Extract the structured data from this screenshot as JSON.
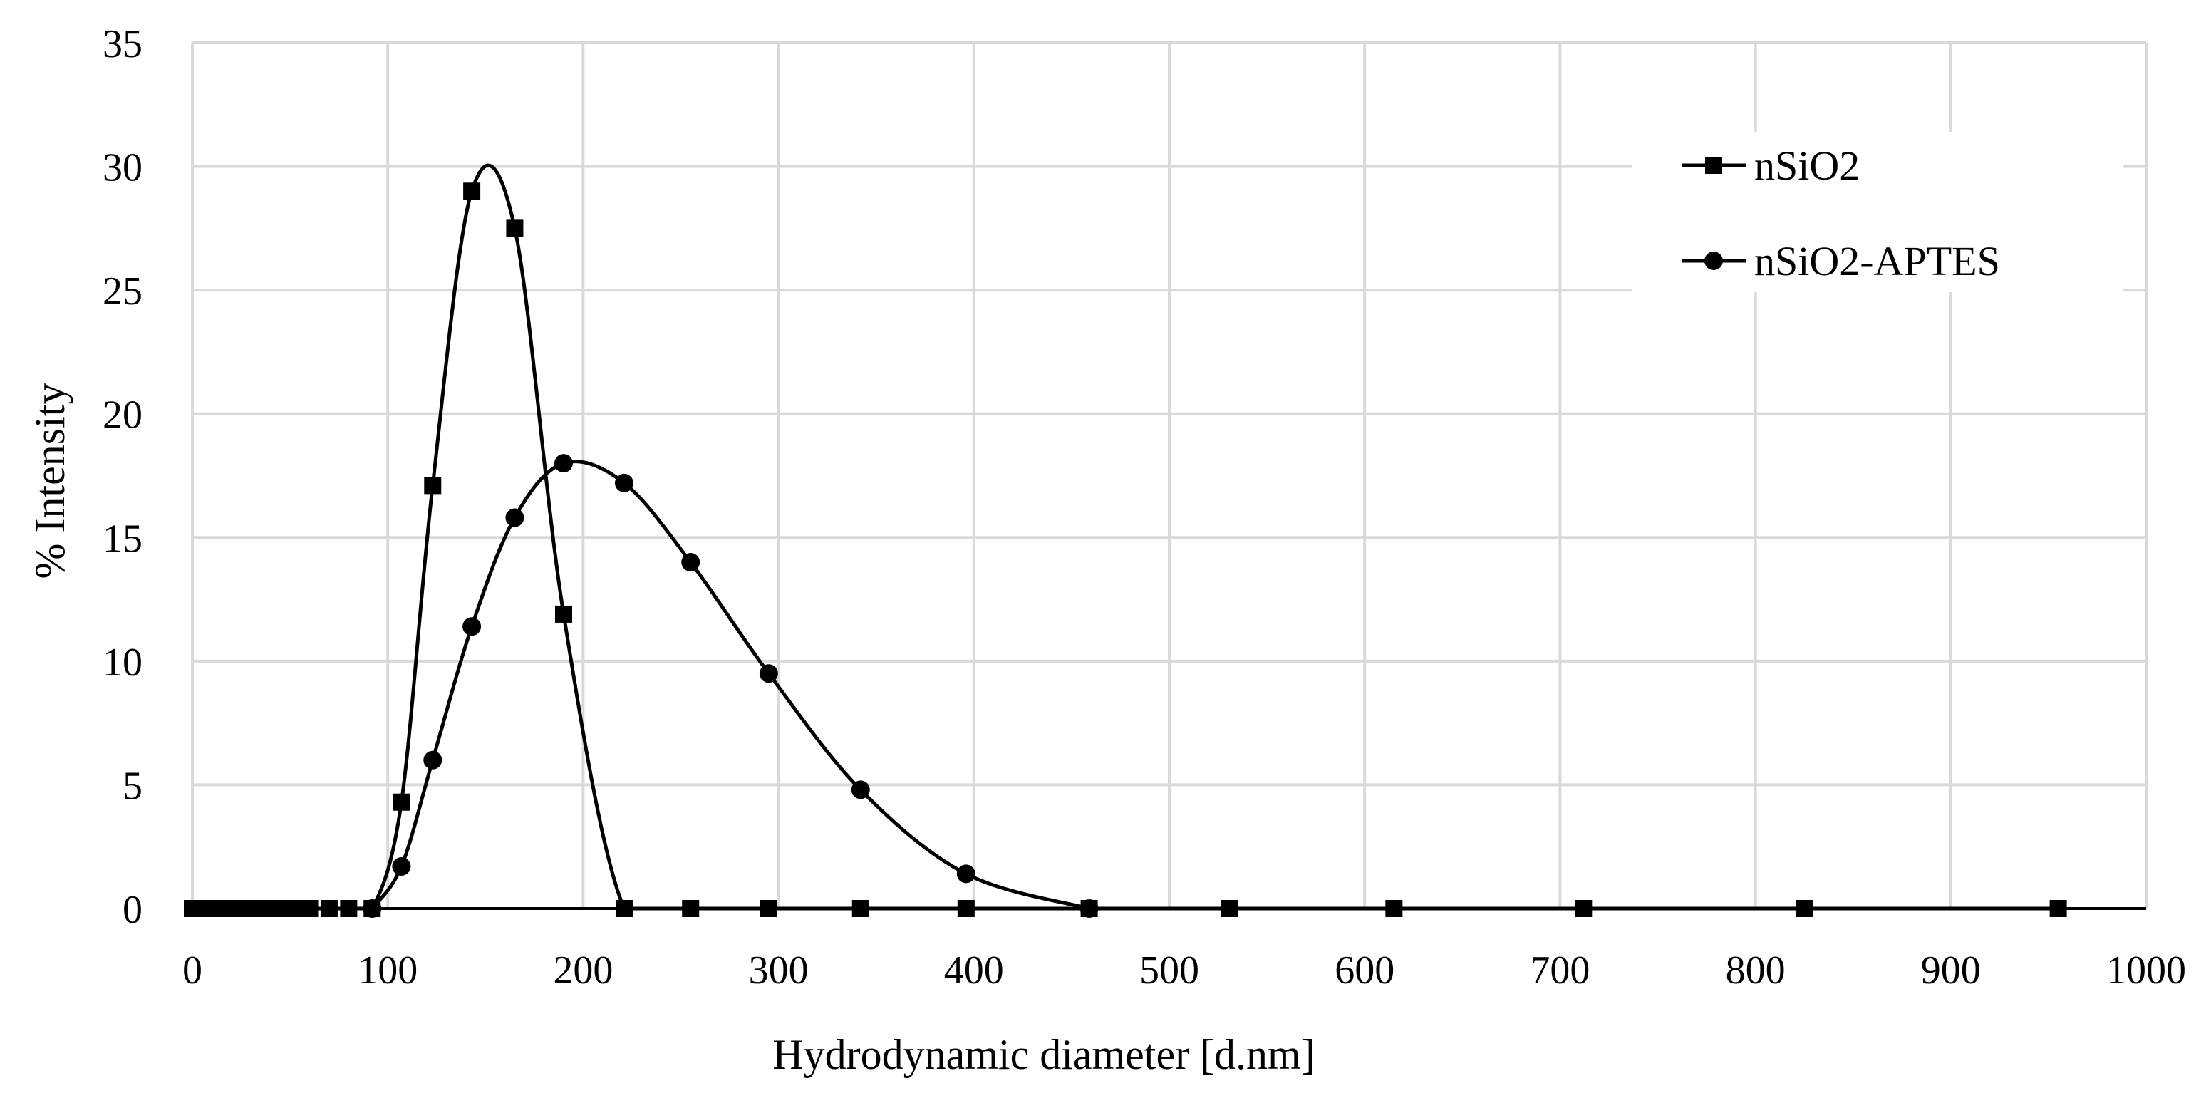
{
  "chart_data": {
    "type": "scatter",
    "title": "",
    "xlabel": "Hydrodynamic diameter [d.nm]",
    "ylabel": "% Intensity",
    "xlim": [
      0,
      1000
    ],
    "ylim": [
      0,
      35
    ],
    "x_ticks": [
      0,
      100,
      200,
      300,
      400,
      500,
      600,
      700,
      800,
      900,
      1000
    ],
    "y_ticks": [
      0,
      5,
      10,
      15,
      20,
      25,
      30,
      35
    ],
    "grid": true,
    "legend_position": "top-right",
    "series": [
      {
        "name": "nSiO2",
        "marker": "square",
        "line": "smooth",
        "color": "#000000",
        "x": [
          0,
          6,
          12,
          17,
          22,
          27,
          32,
          38,
          45,
          52,
          60,
          70,
          80,
          92,
          107,
          123,
          143,
          165,
          190,
          221,
          255,
          295,
          342,
          396,
          459,
          531,
          615,
          712,
          825,
          955
        ],
        "y": [
          0,
          0,
          0,
          0,
          0,
          0,
          0,
          0,
          0,
          0,
          0,
          0,
          0,
          0,
          4.3,
          17.1,
          29.0,
          27.5,
          11.9,
          0,
          0,
          0,
          0,
          0,
          0,
          0,
          0,
          0,
          0,
          0
        ]
      },
      {
        "name": "nSiO2-APTES",
        "marker": "circle",
        "line": "smooth",
        "color": "#000000",
        "x": [
          92,
          107,
          123,
          143,
          165,
          190,
          221,
          255,
          295,
          342,
          396,
          459
        ],
        "y": [
          0,
          1.7,
          6.0,
          11.4,
          15.8,
          18.0,
          17.2,
          14.0,
          9.5,
          4.8,
          1.4,
          0
        ]
      }
    ]
  }
}
